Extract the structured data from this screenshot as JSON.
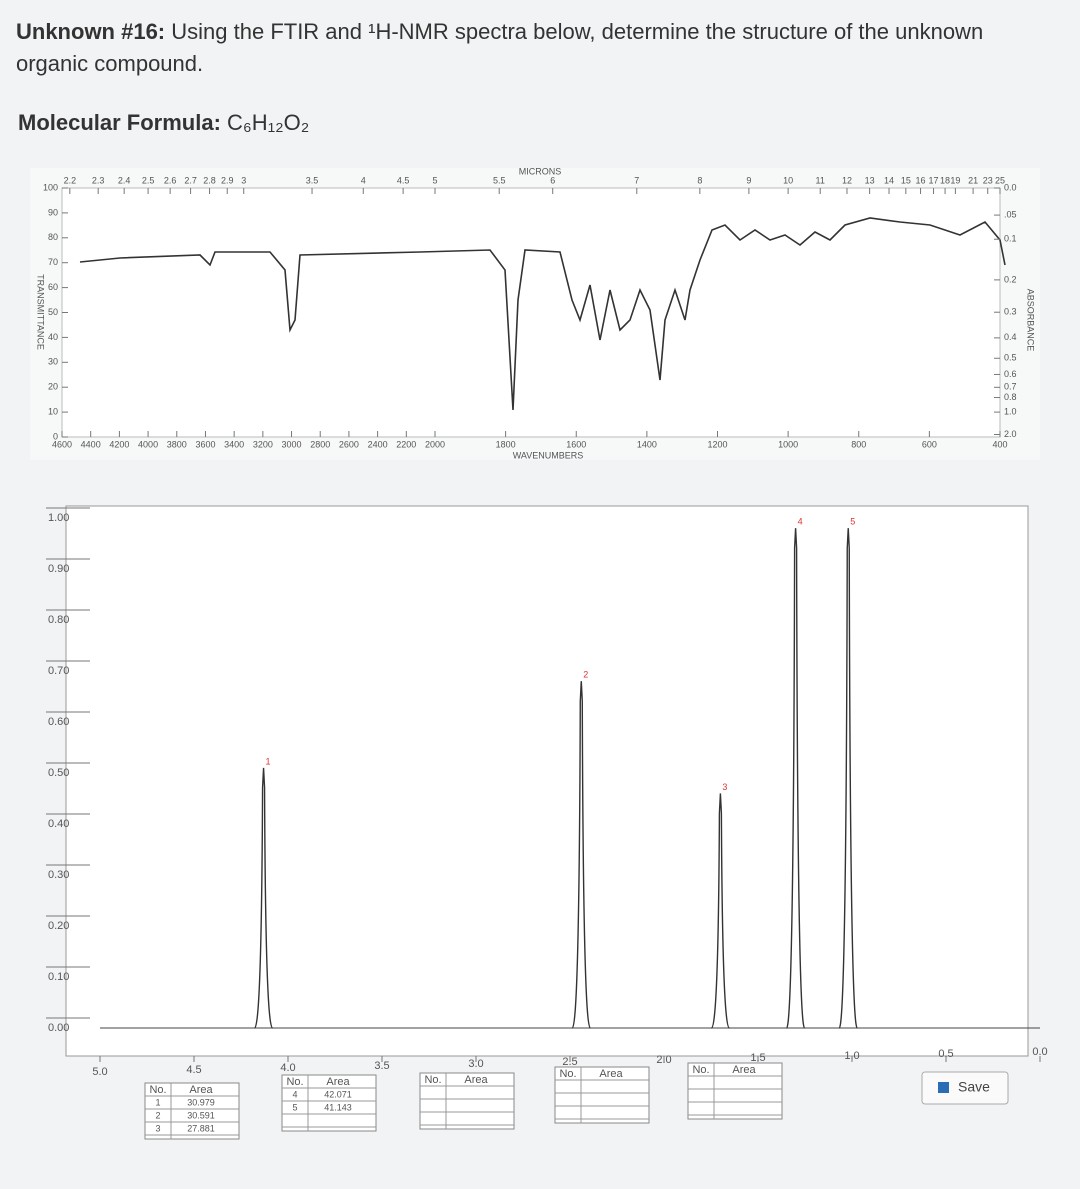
{
  "header": {
    "label": "Unknown #16:",
    "question": "Using the FTIR and ¹H-NMR spectra below, determine the structure of the unknown organic compound."
  },
  "formula": {
    "label": "Molecular Formula:",
    "value": "C₆H₁₂O₂"
  },
  "ir": {
    "microns_label": "MICRONS",
    "wavenumbers_label": "WAVENUMBERS",
    "y_label": "TRANSMITTANCE",
    "y2_label": "ABSORBANCE",
    "micron_ticks": [
      2.2,
      2.3,
      2.4,
      2.5,
      2.6,
      2.7,
      2.8,
      2.9,
      3,
      3.5,
      4,
      4.5,
      5,
      5.5,
      6,
      7,
      8,
      9,
      10,
      11,
      12,
      13,
      14,
      15,
      16,
      17,
      18,
      19,
      21,
      23,
      25
    ],
    "wavenumber_ticks": [
      4600,
      4400,
      4200,
      4000,
      3800,
      3600,
      3400,
      3200,
      3000,
      2800,
      2600,
      2400,
      2200,
      2000,
      1800,
      1600,
      1400,
      1200,
      1000,
      800,
      600,
      400
    ],
    "yticks": [
      100,
      90,
      80,
      70,
      60,
      50,
      40,
      30,
      20,
      10,
      0
    ],
    "y2ticks": [
      {
        "value": 0,
        "label": "0.0"
      },
      {
        "value": 0.05,
        "label": ".05"
      },
      0.1,
      0.2,
      0.3,
      0.4,
      0.5,
      0.6,
      0.7,
      0.8,
      {
        "value": 1,
        "label": "1.0"
      },
      {
        "value": 2,
        "label": "2.0"
      }
    ]
  },
  "nmr": {
    "xticks": [
      {
        "value": 5,
        "label": "5.0"
      },
      4.5,
      {
        "value": 4,
        "label": "4.0"
      },
      3.5,
      {
        "value": 3,
        "label": "3.0"
      },
      2.5,
      {
        "value": 2,
        "label": "2.0"
      },
      1.5,
      {
        "value": 1,
        "label": "1.0"
      },
      0.5,
      {
        "value": 0,
        "label": "0.0"
      }
    ],
    "yticks": [
      {
        "value": 0,
        "label": "0.00"
      },
      {
        "value": 0.1,
        "label": "0.10"
      },
      {
        "value": 0.2,
        "label": "0.20"
      },
      {
        "value": 0.3,
        "label": "0.30"
      },
      {
        "value": 0.4,
        "label": "0.40"
      },
      {
        "value": 0.5,
        "label": "0.50"
      },
      {
        "value": 0.6,
        "label": "0.60"
      },
      {
        "value": 0.7,
        "label": "0.70"
      },
      {
        "value": 0.8,
        "label": "0.80"
      },
      {
        "value": 0.9,
        "label": "0.90"
      },
      {
        "value": 1,
        "label": "1.00"
      }
    ],
    "peaks": [
      {
        "label": "1",
        "ppm": 4.13,
        "height": 0.51
      },
      {
        "label": "2",
        "ppm": 2.44,
        "height": 0.68
      },
      {
        "label": "3",
        "ppm": 1.7,
        "height": 0.46
      },
      {
        "label": "4",
        "ppm": 1.3,
        "height": 0.98
      },
      {
        "label": "5",
        "ppm": 1.02,
        "height": 0.98
      }
    ],
    "tables": [
      {
        "header": [
          "No.",
          "Area"
        ],
        "rows": [
          [
            1,
            30.979
          ],
          [
            2,
            30.591
          ],
          [
            3,
            27.881
          ]
        ]
      },
      {
        "header": [
          "No.",
          "Area"
        ],
        "rows": [
          [
            4,
            42.071
          ],
          [
            5,
            41.143
          ]
        ]
      },
      {
        "header": [
          "No.",
          "Area"
        ],
        "rows": []
      },
      {
        "header": [
          "No.",
          "Area"
        ],
        "rows": []
      },
      {
        "header": [
          "No.",
          "Area"
        ],
        "rows": []
      }
    ],
    "save": "Save"
  }
}
